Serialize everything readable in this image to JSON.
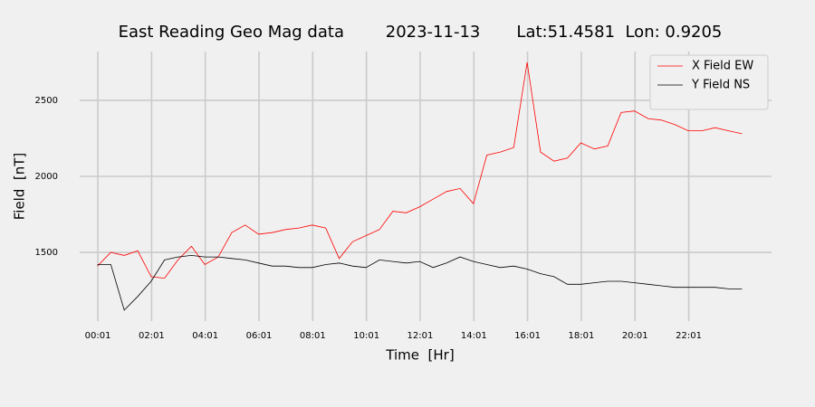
{
  "chart_data": {
    "type": "line",
    "title": "East Reading Geo Mag data        2023-11-13       Lat:51.4581  Lon: 0.9205",
    "x_label": "Time  [Hr]",
    "y_label": "Field  [nT]",
    "x": [
      0,
      0.5,
      1,
      1.5,
      2,
      2.5,
      3,
      3.5,
      4,
      4.5,
      5,
      5.5,
      6,
      6.5,
      7,
      7.5,
      8,
      8.5,
      9,
      9.5,
      10,
      10.5,
      11,
      11.5,
      12,
      12.5,
      13,
      13.5,
      14,
      14.5,
      15,
      15.5,
      16,
      16.5,
      17,
      17.5,
      18,
      18.5,
      19,
      19.5,
      20,
      20.5,
      21,
      21.5,
      22,
      22.5,
      23,
      23.5,
      24
    ],
    "series": [
      {
        "name": "X Field EW",
        "color": "#ff0000",
        "values": [
          1410,
          1500,
          1480,
          1510,
          1340,
          1330,
          1450,
          1540,
          1420,
          1470,
          1630,
          1680,
          1620,
          1630,
          1650,
          1660,
          1680,
          1660,
          1460,
          1570,
          1610,
          1650,
          1770,
          1760,
          1800,
          1850,
          1900,
          1920,
          1820,
          2140,
          2160,
          2190,
          2750,
          2160,
          2100,
          2120,
          2220,
          2180,
          2200,
          2420,
          2430,
          2380,
          2370,
          2340,
          2300,
          2300,
          2320,
          2300,
          2280
        ]
      },
      {
        "name": "Y Field NS",
        "color": "#000000",
        "values": [
          1420,
          1420,
          1120,
          1210,
          1310,
          1450,
          1470,
          1480,
          1470,
          1470,
          1460,
          1450,
          1430,
          1410,
          1410,
          1400,
          1400,
          1420,
          1430,
          1410,
          1400,
          1450,
          1440,
          1430,
          1440,
          1400,
          1430,
          1470,
          1440,
          1420,
          1400,
          1410,
          1390,
          1360,
          1340,
          1290,
          1290,
          1300,
          1310,
          1310,
          1300,
          1290,
          1280,
          1270,
          1270,
          1270,
          1270,
          1260,
          1260
        ]
      }
    ],
    "xlim": [
      -0.66,
      25.1
    ],
    "xticks": [
      {
        "value": 0.0167,
        "label": "00:01"
      },
      {
        "value": 2.0167,
        "label": "02:01"
      },
      {
        "value": 4.0167,
        "label": "04:01"
      },
      {
        "value": 6.0167,
        "label": "06:01"
      },
      {
        "value": 8.0167,
        "label": "08:01"
      },
      {
        "value": 10.0167,
        "label": "10:01"
      },
      {
        "value": 12.0167,
        "label": "12:01"
      },
      {
        "value": 14.0167,
        "label": "14:01"
      },
      {
        "value": 16.0167,
        "label": "16:01"
      },
      {
        "value": 18.0167,
        "label": "18:01"
      },
      {
        "value": 20.0167,
        "label": "20:01"
      },
      {
        "value": 22.0167,
        "label": "22:01"
      }
    ],
    "ylim": [
      1048,
      2821
    ],
    "yticks": [
      1500,
      2000,
      2500
    ],
    "grid": true,
    "legend": "upper right"
  }
}
